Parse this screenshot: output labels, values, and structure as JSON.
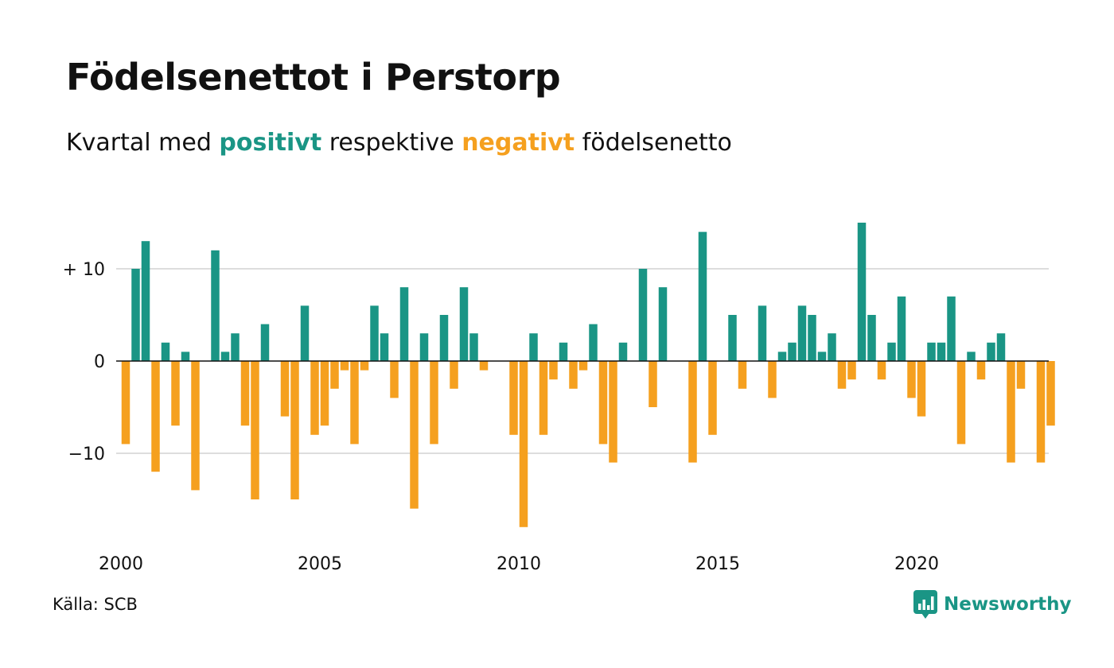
{
  "title": "Födelsenettot i Perstorp",
  "subtitle": {
    "prefix": "Kvartal med ",
    "positive_word": "positivt",
    "middle": " respektive ",
    "negative_word": "negativt",
    "suffix": " födelsenetto"
  },
  "source": "Källa: SCB",
  "brand": "Newsworthy",
  "colors": {
    "positive": "#1a9585",
    "negative": "#f5a01f",
    "grid": "#dddddd",
    "zero": "#111111"
  },
  "chart_data": {
    "type": "bar",
    "start_year": 2000,
    "periods_per_year": 4,
    "values": [
      -9,
      10,
      13,
      -12,
      2,
      -7,
      1,
      -14,
      0,
      12,
      1,
      3,
      -7,
      -15,
      4,
      0,
      -6,
      -15,
      6,
      -8,
      -7,
      -3,
      -1,
      -9,
      -1,
      6,
      3,
      -4,
      8,
      -16,
      3,
      -9,
      5,
      -3,
      8,
      3,
      -1,
      0,
      0,
      -8,
      -18,
      3,
      -8,
      -2,
      2,
      -3,
      -1,
      4,
      -9,
      -11,
      2,
      0,
      10,
      -5,
      8,
      0,
      0,
      -11,
      14,
      -8,
      0,
      5,
      -3,
      0,
      6,
      -4,
      1,
      2,
      6,
      5,
      1,
      3,
      -3,
      -2,
      15,
      5,
      -2,
      2,
      7,
      -4,
      -6,
      2,
      2,
      7,
      -9,
      1,
      -2,
      2,
      3,
      -11,
      -3,
      0,
      -11,
      -7
    ],
    "yticks": [
      10,
      0,
      -10
    ],
    "ytick_labels": [
      "+ 10",
      "0",
      "−10"
    ],
    "xticks": [
      2000,
      2005,
      2010,
      2015,
      2020
    ],
    "ylim": [
      -20,
      16
    ]
  }
}
